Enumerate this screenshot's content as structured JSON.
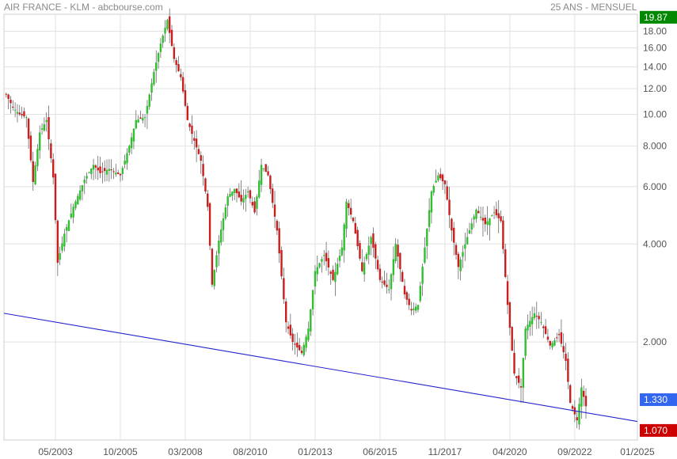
{
  "header": {
    "left_title": "AIR FRANCE - KLM - abcbourse.com",
    "right_title": "25 ANS - MENSUEL"
  },
  "colors": {
    "up": "#2fbf2f",
    "down": "#c81e1e",
    "trendline": "#2222cc",
    "grid": "#e2e2e2",
    "badge_high": "#008800",
    "badge_trend": "#3366ee",
    "badge_last": "#cc0000"
  },
  "chart_data": {
    "type": "candlestick",
    "title": "",
    "scale": "log",
    "ylim": [
      1.0,
      20.3
    ],
    "xlim": [
      "2001-06",
      "2025-01"
    ],
    "x_ticks": [
      "05/2003",
      "10/2005",
      "03/2008",
      "08/2010",
      "01/2013",
      "06/2015",
      "11/2017",
      "04/2020",
      "09/2022",
      "01/2025"
    ],
    "y_ticks": [
      "18.00",
      "16.00",
      "14.00",
      "12.00",
      "10.00",
      "8.000",
      "6.000",
      "4.000",
      "2.000"
    ],
    "y_tick_values": [
      18,
      16,
      14,
      12,
      10,
      8,
      6,
      4,
      2
    ],
    "markers": {
      "high": {
        "label": "19.87",
        "value": 19.87
      },
      "trend": {
        "label": "1.330",
        "value": 1.33
      },
      "last": {
        "label": "1.070",
        "value": 1.07
      }
    },
    "trendline": {
      "start": [
        "2001-06",
        2.45
      ],
      "end": [
        "2025-01",
        1.14
      ]
    },
    "series": [
      {
        "points": [
          [
            "2001-07",
            11.5
          ],
          [
            "2001-10",
            10.5
          ],
          [
            "2002-01",
            10.0
          ],
          [
            "2002-04",
            9.8
          ],
          [
            "2002-07",
            6.2
          ],
          [
            "2002-10",
            8.8
          ],
          [
            "2003-01",
            9.6
          ],
          [
            "2003-04",
            6.4
          ],
          [
            "2003-06",
            3.5
          ],
          [
            "2003-09",
            4.3
          ],
          [
            "2004-01",
            5.2
          ],
          [
            "2004-06",
            6.3
          ],
          [
            "2004-10",
            7.0
          ],
          [
            "2005-01",
            6.6
          ],
          [
            "2005-05",
            6.8
          ],
          [
            "2005-10",
            6.5
          ],
          [
            "2006-02",
            8.0
          ],
          [
            "2006-05",
            9.6
          ],
          [
            "2006-09",
            9.8
          ],
          [
            "2007-01",
            13.5
          ],
          [
            "2007-04",
            16.5
          ],
          [
            "2007-07",
            19.5
          ],
          [
            "2007-10",
            14.8
          ],
          [
            "2008-01",
            13.0
          ],
          [
            "2008-04",
            9.6
          ],
          [
            "2008-07",
            8.3
          ],
          [
            "2008-10",
            7.2
          ],
          [
            "2009-01",
            5.2
          ],
          [
            "2009-03",
            3.0
          ],
          [
            "2009-06",
            4.1
          ],
          [
            "2009-10",
            5.6
          ],
          [
            "2010-01",
            5.9
          ],
          [
            "2010-04",
            5.4
          ],
          [
            "2010-07",
            5.8
          ],
          [
            "2010-10",
            5.0
          ],
          [
            "2011-01",
            7.0
          ],
          [
            "2011-04",
            6.5
          ],
          [
            "2011-08",
            4.4
          ],
          [
            "2011-12",
            2.3
          ],
          [
            "2012-03",
            2.0
          ],
          [
            "2012-07",
            1.85
          ],
          [
            "2012-10",
            2.2
          ],
          [
            "2013-01",
            3.3
          ],
          [
            "2013-05",
            3.7
          ],
          [
            "2013-09",
            3.1
          ],
          [
            "2014-01",
            3.9
          ],
          [
            "2014-03",
            5.4
          ],
          [
            "2014-06",
            4.7
          ],
          [
            "2014-10",
            3.3
          ],
          [
            "2015-02",
            4.2
          ],
          [
            "2015-06",
            3.1
          ],
          [
            "2015-10",
            2.9
          ],
          [
            "2016-01",
            4.0
          ],
          [
            "2016-05",
            2.8
          ],
          [
            "2016-08",
            2.5
          ],
          [
            "2016-11",
            2.6
          ],
          [
            "2017-02",
            3.9
          ],
          [
            "2017-05",
            5.8
          ],
          [
            "2017-08",
            6.5
          ],
          [
            "2017-11",
            6.1
          ],
          [
            "2018-02",
            4.4
          ],
          [
            "2018-05",
            3.4
          ],
          [
            "2018-09",
            4.2
          ],
          [
            "2019-01",
            5.1
          ],
          [
            "2019-05",
            4.6
          ],
          [
            "2019-09",
            5.0
          ],
          [
            "2019-12",
            4.7
          ],
          [
            "2020-03",
            2.6
          ],
          [
            "2020-06",
            1.6
          ],
          [
            "2020-09",
            1.45
          ],
          [
            "2020-11",
            2.2
          ],
          [
            "2021-03",
            2.45
          ],
          [
            "2021-06",
            2.3
          ],
          [
            "2021-10",
            1.95
          ],
          [
            "2022-02",
            2.1
          ],
          [
            "2022-05",
            1.75
          ],
          [
            "2022-07",
            1.3
          ],
          [
            "2022-10",
            1.15
          ],
          [
            "2022-12",
            1.45
          ],
          [
            "2023-02",
            1.27
          ]
        ]
      }
    ]
  }
}
